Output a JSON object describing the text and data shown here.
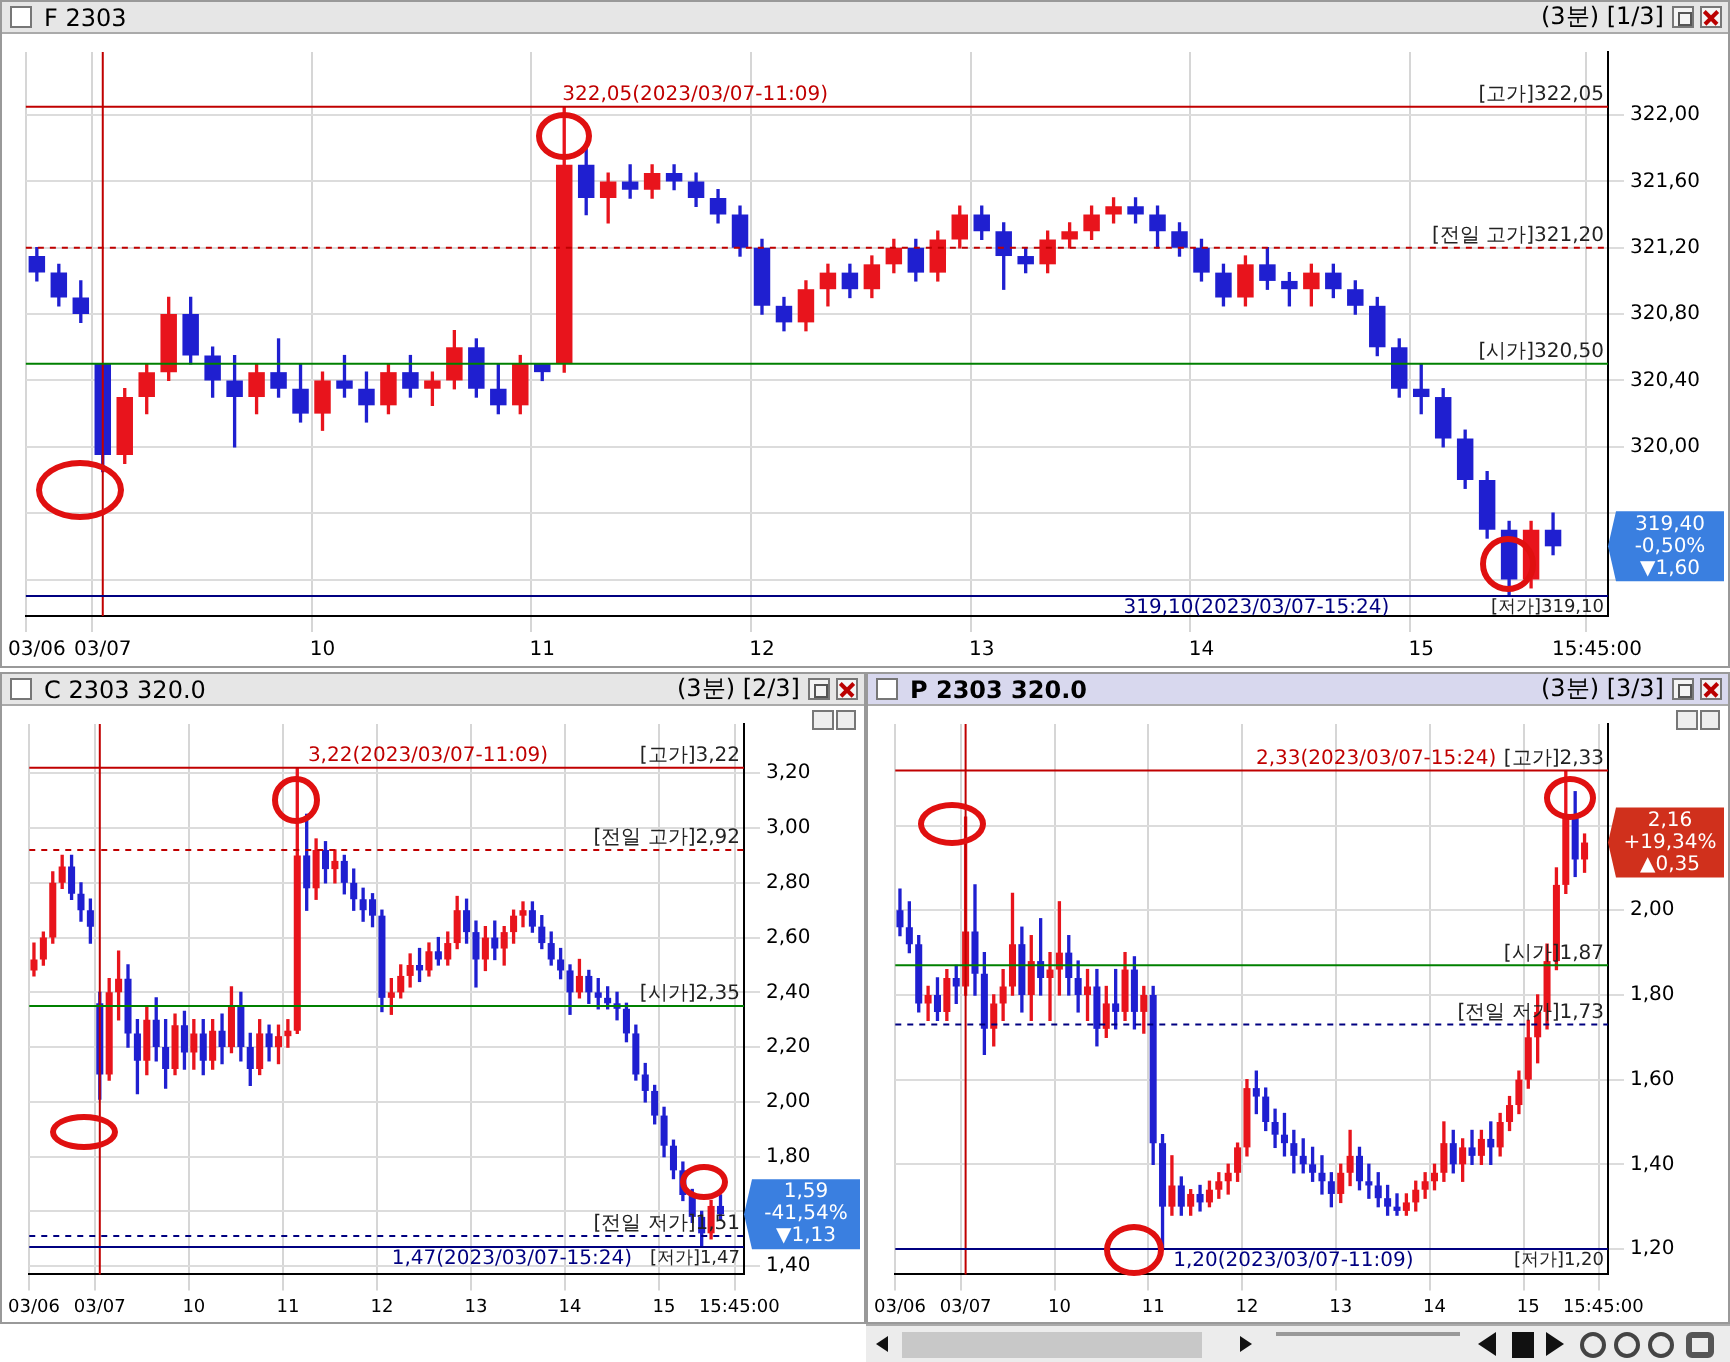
{
  "chart_data": [
    {
      "type": "candlestick",
      "title": "F 2303",
      "subtitle": "(3분) [1/3]",
      "categories": [
        "03/06",
        null,
        null,
        "03/07",
        null,
        null,
        null,
        null,
        null,
        null,
        null,
        null,
        null,
        "10",
        null,
        null,
        null,
        null,
        null,
        null,
        null,
        null,
        null,
        "11",
        null,
        null,
        null,
        null,
        null,
        null,
        null,
        null,
        null,
        "12",
        null,
        null,
        null,
        null,
        null,
        null,
        null,
        null,
        null,
        "13",
        null,
        null,
        null,
        null,
        null,
        null,
        null,
        null,
        null,
        "14",
        null,
        null,
        null,
        null,
        null,
        null,
        null,
        null,
        null,
        "15",
        null,
        null,
        null,
        null,
        null,
        null,
        null,
        "15:45:00"
      ],
      "ohlc": [
        [
          321.15,
          321.2,
          321.0,
          321.05
        ],
        [
          321.05,
          321.1,
          320.85,
          320.9
        ],
        [
          320.9,
          321.0,
          320.75,
          320.8
        ],
        [
          320.5,
          320.5,
          319.85,
          319.95
        ],
        [
          319.95,
          320.35,
          319.9,
          320.3
        ],
        [
          320.3,
          320.5,
          320.2,
          320.45
        ],
        [
          320.45,
          320.9,
          320.4,
          320.8
        ],
        [
          320.8,
          320.9,
          320.5,
          320.55
        ],
        [
          320.55,
          320.6,
          320.3,
          320.4
        ],
        [
          320.4,
          320.55,
          320.0,
          320.3
        ],
        [
          320.3,
          320.5,
          320.2,
          320.45
        ],
        [
          320.45,
          320.65,
          320.3,
          320.35
        ],
        [
          320.35,
          320.5,
          320.15,
          320.2
        ],
        [
          320.2,
          320.45,
          320.1,
          320.4
        ],
        [
          320.4,
          320.55,
          320.3,
          320.35
        ],
        [
          320.35,
          320.45,
          320.15,
          320.25
        ],
        [
          320.25,
          320.5,
          320.2,
          320.45
        ],
        [
          320.45,
          320.55,
          320.3,
          320.35
        ],
        [
          320.35,
          320.45,
          320.25,
          320.4
        ],
        [
          320.4,
          320.7,
          320.35,
          320.6
        ],
        [
          320.6,
          320.65,
          320.3,
          320.35
        ],
        [
          320.35,
          320.5,
          320.2,
          320.25
        ],
        [
          320.25,
          320.55,
          320.2,
          320.5
        ],
        [
          320.5,
          320.5,
          320.4,
          320.45
        ],
        [
          320.5,
          322.05,
          320.45,
          321.7
        ],
        [
          321.7,
          321.8,
          321.4,
          321.5
        ],
        [
          321.5,
          321.65,
          321.35,
          321.6
        ],
        [
          321.6,
          321.7,
          321.5,
          321.55
        ],
        [
          321.55,
          321.7,
          321.5,
          321.65
        ],
        [
          321.65,
          321.7,
          321.55,
          321.6
        ],
        [
          321.6,
          321.65,
          321.45,
          321.5
        ],
        [
          321.5,
          321.55,
          321.35,
          321.4
        ],
        [
          321.4,
          321.45,
          321.15,
          321.2
        ],
        [
          321.2,
          321.25,
          320.8,
          320.85
        ],
        [
          320.85,
          320.9,
          320.7,
          320.75
        ],
        [
          320.75,
          321.0,
          320.7,
          320.95
        ],
        [
          320.95,
          321.1,
          320.85,
          321.05
        ],
        [
          321.05,
          321.1,
          320.9,
          320.95
        ],
        [
          320.95,
          321.15,
          320.9,
          321.1
        ],
        [
          321.1,
          321.25,
          321.05,
          321.2
        ],
        [
          321.2,
          321.25,
          321.0,
          321.05
        ],
        [
          321.05,
          321.3,
          321.0,
          321.25
        ],
        [
          321.25,
          321.45,
          321.2,
          321.4
        ],
        [
          321.4,
          321.45,
          321.25,
          321.3
        ],
        [
          321.3,
          321.35,
          320.95,
          321.15
        ],
        [
          321.15,
          321.2,
          321.05,
          321.1
        ],
        [
          321.1,
          321.3,
          321.05,
          321.25
        ],
        [
          321.25,
          321.35,
          321.2,
          321.3
        ],
        [
          321.3,
          321.45,
          321.25,
          321.4
        ],
        [
          321.4,
          321.5,
          321.35,
          321.45
        ],
        [
          321.45,
          321.5,
          321.35,
          321.4
        ],
        [
          321.4,
          321.45,
          321.2,
          321.3
        ],
        [
          321.3,
          321.35,
          321.15,
          321.2
        ],
        [
          321.2,
          321.25,
          321.0,
          321.05
        ],
        [
          321.05,
          321.1,
          320.85,
          320.9
        ],
        [
          320.9,
          321.15,
          320.85,
          321.1
        ],
        [
          321.1,
          321.2,
          320.95,
          321.0
        ],
        [
          321.0,
          321.05,
          320.85,
          320.95
        ],
        [
          320.95,
          321.1,
          320.85,
          321.05
        ],
        [
          321.05,
          321.1,
          320.9,
          320.95
        ],
        [
          320.95,
          321.0,
          320.8,
          320.85
        ],
        [
          320.85,
          320.9,
          320.55,
          320.6
        ],
        [
          320.6,
          320.65,
          320.3,
          320.35
        ],
        [
          320.35,
          320.5,
          320.2,
          320.3
        ],
        [
          320.3,
          320.35,
          320.0,
          320.05
        ],
        [
          320.05,
          320.1,
          319.75,
          319.8
        ],
        [
          319.8,
          319.85,
          319.45,
          319.5
        ],
        [
          319.5,
          319.55,
          319.1,
          319.2
        ],
        [
          319.2,
          319.55,
          319.15,
          319.5
        ],
        [
          319.5,
          319.6,
          319.35,
          319.4
        ],
        null,
        null
      ],
      "ylim": [
        318.98,
        322.38
      ],
      "yticks": [
        {
          "value": 319.2,
          "label": null
        },
        {
          "value": 319.6,
          "label": null
        },
        {
          "value": 320.0,
          "label": "320,00"
        },
        {
          "value": 320.4,
          "label": "320,40"
        },
        {
          "value": 320.8,
          "label": "320,80"
        },
        {
          "value": 321.2,
          "label": "321,20"
        },
        {
          "value": 321.6,
          "label": "321,60"
        },
        {
          "value": 322.0,
          "label": "322,00"
        }
      ],
      "grid": true,
      "ref_lines": [
        {
          "axis": "x",
          "value": "03/07",
          "color": "#c00000"
        },
        {
          "axis": "y",
          "value": 322.05,
          "label": "[고가]322,05",
          "color": "#c00000",
          "line_style": "solid"
        },
        {
          "axis": "y",
          "value": 321.2,
          "label": "[전일 고가]321,20",
          "color": "#c00000",
          "line_style": "dashed"
        },
        {
          "axis": "y",
          "value": 320.5,
          "label": "[시가]320,50",
          "color": "#008000",
          "line_style": "solid"
        },
        {
          "axis": "y",
          "value": 319.1,
          "label": "[저가]319,10",
          "color": "#000080",
          "line_style": "solid"
        }
      ],
      "annotations": [
        {
          "text": "322,05(2023/03/07-11:09)",
          "x": "11",
          "y": 322.05
        },
        {
          "text": "319,10(2023/03/07-15:24)",
          "x": "15",
          "y": 319.1
        },
        "319,40 -0,50% ▼1,60"
      ]
    },
    {
      "type": "candlestick",
      "title": "C 2303 320.0",
      "subtitle": "(3분) [2/3]",
      "categories": [
        "03/06",
        null,
        null,
        null,
        null,
        null,
        null,
        "03/07",
        null,
        null,
        null,
        null,
        null,
        null,
        null,
        null,
        null,
        "10",
        null,
        null,
        null,
        null,
        null,
        null,
        null,
        null,
        null,
        "11",
        null,
        null,
        null,
        null,
        null,
        null,
        null,
        null,
        null,
        "12",
        null,
        null,
        null,
        null,
        null,
        null,
        null,
        null,
        null,
        "13",
        null,
        null,
        null,
        null,
        null,
        null,
        null,
        null,
        null,
        "14",
        null,
        null,
        null,
        null,
        null,
        null,
        null,
        null,
        null,
        "15",
        null,
        null,
        null,
        null,
        null,
        null,
        null,
        "15:45:00"
      ],
      "ohlc": [
        [
          2.48,
          2.58,
          2.46,
          2.52
        ],
        [
          2.52,
          2.62,
          2.5,
          2.6
        ],
        [
          2.6,
          2.84,
          2.58,
          2.8
        ],
        [
          2.8,
          2.9,
          2.78,
          2.86
        ],
        [
          2.86,
          2.9,
          2.74,
          2.76
        ],
        [
          2.76,
          2.8,
          2.66,
          2.7
        ],
        [
          2.7,
          2.74,
          2.58,
          2.64
        ],
        [
          2.36,
          2.4,
          2.01,
          2.1
        ],
        [
          2.1,
          2.45,
          2.08,
          2.4
        ],
        [
          2.4,
          2.55,
          2.3,
          2.45
        ],
        [
          2.45,
          2.5,
          2.2,
          2.25
        ],
        [
          2.25,
          2.3,
          2.03,
          2.15
        ],
        [
          2.15,
          2.35,
          2.1,
          2.3
        ],
        [
          2.3,
          2.38,
          2.15,
          2.2
        ],
        [
          2.2,
          2.3,
          2.05,
          2.12
        ],
        [
          2.12,
          2.32,
          2.1,
          2.28
        ],
        [
          2.28,
          2.33,
          2.12,
          2.18
        ],
        [
          2.18,
          2.3,
          2.12,
          2.25
        ],
        [
          2.25,
          2.3,
          2.1,
          2.15
        ],
        [
          2.15,
          2.3,
          2.12,
          2.26
        ],
        [
          2.26,
          2.32,
          2.14,
          2.2
        ],
        [
          2.2,
          2.42,
          2.18,
          2.35
        ],
        [
          2.35,
          2.4,
          2.15,
          2.2
        ],
        [
          2.2,
          2.25,
          2.06,
          2.12
        ],
        [
          2.12,
          2.3,
          2.1,
          2.25
        ],
        [
          2.25,
          2.28,
          2.15,
          2.2
        ],
        [
          2.2,
          2.28,
          2.14,
          2.24
        ],
        [
          2.24,
          2.3,
          2.2,
          2.26
        ],
        [
          2.26,
          3.22,
          2.25,
          2.9
        ],
        [
          2.9,
          3.05,
          2.7,
          2.78
        ],
        [
          2.78,
          2.96,
          2.74,
          2.92
        ],
        [
          2.92,
          2.95,
          2.8,
          2.85
        ],
        [
          2.85,
          2.92,
          2.8,
          2.88
        ],
        [
          2.88,
          2.9,
          2.76,
          2.8
        ],
        [
          2.8,
          2.85,
          2.7,
          2.74
        ],
        [
          2.74,
          2.78,
          2.66,
          2.7
        ],
        [
          2.74,
          2.76,
          2.64,
          2.68
        ],
        [
          2.68,
          2.7,
          2.33,
          2.38
        ],
        [
          2.38,
          2.45,
          2.32,
          2.4
        ],
        [
          2.4,
          2.5,
          2.38,
          2.46
        ],
        [
          2.46,
          2.54,
          2.42,
          2.5
        ],
        [
          2.5,
          2.56,
          2.44,
          2.48
        ],
        [
          2.48,
          2.58,
          2.46,
          2.55
        ],
        [
          2.55,
          2.6,
          2.5,
          2.52
        ],
        [
          2.52,
          2.62,
          2.5,
          2.58
        ],
        [
          2.58,
          2.75,
          2.56,
          2.7
        ],
        [
          2.7,
          2.74,
          2.58,
          2.62
        ],
        [
          2.62,
          2.66,
          2.42,
          2.52
        ],
        [
          2.52,
          2.64,
          2.48,
          2.6
        ],
        [
          2.6,
          2.66,
          2.52,
          2.56
        ],
        [
          2.56,
          2.64,
          2.5,
          2.62
        ],
        [
          2.62,
          2.7,
          2.58,
          2.68
        ],
        [
          2.68,
          2.73,
          2.64,
          2.7
        ],
        [
          2.7,
          2.73,
          2.62,
          2.64
        ],
        [
          2.64,
          2.68,
          2.56,
          2.58
        ],
        [
          2.58,
          2.62,
          2.5,
          2.52
        ],
        [
          2.52,
          2.56,
          2.45,
          2.48
        ],
        [
          2.48,
          2.5,
          2.32,
          2.4
        ],
        [
          2.4,
          2.52,
          2.38,
          2.46
        ],
        [
          2.46,
          2.48,
          2.36,
          2.4
        ],
        [
          2.4,
          2.45,
          2.34,
          2.38
        ],
        [
          2.38,
          2.42,
          2.34,
          2.36
        ],
        [
          2.36,
          2.4,
          2.3,
          2.34
        ],
        [
          2.34,
          2.36,
          2.22,
          2.25
        ],
        [
          2.25,
          2.28,
          2.08,
          2.1
        ],
        [
          2.1,
          2.14,
          2.0,
          2.04
        ],
        [
          2.04,
          2.06,
          1.92,
          1.95
        ],
        [
          1.95,
          1.98,
          1.8,
          1.84
        ],
        [
          1.84,
          1.86,
          1.72,
          1.75
        ],
        [
          1.75,
          1.78,
          1.64,
          1.66
        ],
        [
          1.66,
          1.68,
          1.56,
          1.58
        ],
        [
          1.58,
          1.6,
          1.47,
          1.52
        ],
        [
          1.52,
          1.64,
          1.5,
          1.62
        ],
        [
          1.62,
          1.66,
          1.57,
          1.59
        ],
        null,
        null
      ],
      "ylim": [
        1.37,
        3.38
      ],
      "yticks": [
        {
          "value": 1.4,
          "label": "1,40"
        },
        {
          "value": 1.6,
          "label": null
        },
        {
          "value": 1.8,
          "label": "1,80"
        },
        {
          "value": 2.0,
          "label": "2,00"
        },
        {
          "value": 2.2,
          "label": "2,20"
        },
        {
          "value": 2.4,
          "label": "2,40"
        },
        {
          "value": 2.6,
          "label": "2,60"
        },
        {
          "value": 2.8,
          "label": "2,80"
        },
        {
          "value": 3.0,
          "label": "3,00"
        },
        {
          "value": 3.2,
          "label": "3,20"
        }
      ],
      "grid": true,
      "ref_lines": [
        {
          "axis": "x",
          "value": "03/07",
          "color": "#c00000"
        },
        {
          "axis": "y",
          "value": 3.22,
          "label": "[고가]3,22",
          "color": "#c00000",
          "line_style": "solid"
        },
        {
          "axis": "y",
          "value": 2.92,
          "label": "[전일 고가]2,92",
          "color": "#c00000",
          "line_style": "dashed"
        },
        {
          "axis": "y",
          "value": 2.35,
          "label": "[시가]2,35",
          "color": "#008000",
          "line_style": "solid"
        },
        {
          "axis": "y",
          "value": 1.51,
          "label": "[전일 저가]1,51",
          "color": "#000080",
          "line_style": "dashed"
        },
        {
          "axis": "y",
          "value": 1.47,
          "label": "[저가]1,47",
          "color": "#000080",
          "line_style": "solid"
        }
      ],
      "annotations": [
        {
          "text": "3,22(2023/03/07-11:09)",
          "x": "11",
          "y": 3.22
        },
        {
          "text": "1,47(2023/03/07-15:24)",
          "x": "15",
          "y": 1.47
        },
        "1,59 -41,54% ▼1,13"
      ]
    },
    {
      "type": "candlestick",
      "title": "P 2303 320.0",
      "subtitle": "(3분) [3/3]",
      "categories": [
        "03/06",
        null,
        null,
        null,
        null,
        null,
        null,
        "03/07",
        null,
        null,
        null,
        null,
        null,
        null,
        null,
        null,
        null,
        "10",
        null,
        null,
        null,
        null,
        null,
        null,
        null,
        null,
        null,
        "11",
        null,
        null,
        null,
        null,
        null,
        null,
        null,
        null,
        null,
        "12",
        null,
        null,
        null,
        null,
        null,
        null,
        null,
        null,
        null,
        "13",
        null,
        null,
        null,
        null,
        null,
        null,
        null,
        null,
        null,
        "14",
        null,
        null,
        null,
        null,
        null,
        null,
        null,
        null,
        null,
        "15",
        null,
        null,
        null,
        null,
        null,
        null,
        null,
        "15:45:00"
      ],
      "ohlc": [
        [
          2.0,
          2.05,
          1.94,
          1.96
        ],
        [
          1.96,
          2.02,
          1.9,
          1.92
        ],
        [
          1.92,
          1.94,
          1.76,
          1.78
        ],
        [
          1.78,
          1.82,
          1.74,
          1.8
        ],
        [
          1.8,
          1.84,
          1.74,
          1.76
        ],
        [
          1.76,
          1.86,
          1.74,
          1.84
        ],
        [
          1.84,
          1.87,
          1.78,
          1.82
        ],
        [
          1.82,
          2.22,
          1.8,
          1.95
        ],
        [
          1.95,
          2.06,
          1.8,
          1.85
        ],
        [
          1.85,
          1.9,
          1.66,
          1.72
        ],
        [
          1.72,
          1.8,
          1.68,
          1.78
        ],
        [
          1.78,
          1.86,
          1.74,
          1.82
        ],
        [
          1.82,
          2.04,
          1.8,
          1.92
        ],
        [
          1.92,
          1.96,
          1.76,
          1.8
        ],
        [
          1.8,
          1.94,
          1.74,
          1.88
        ],
        [
          1.88,
          1.98,
          1.8,
          1.84
        ],
        [
          1.84,
          1.9,
          1.74,
          1.86
        ],
        [
          1.86,
          2.02,
          1.8,
          1.9
        ],
        [
          1.9,
          1.94,
          1.8,
          1.84
        ],
        [
          1.84,
          1.88,
          1.76,
          1.8
        ],
        [
          1.8,
          1.86,
          1.74,
          1.82
        ],
        [
          1.82,
          1.86,
          1.68,
          1.72
        ],
        [
          1.72,
          1.82,
          1.7,
          1.78
        ],
        [
          1.78,
          1.86,
          1.72,
          1.76
        ],
        [
          1.76,
          1.9,
          1.74,
          1.86
        ],
        [
          1.86,
          1.89,
          1.72,
          1.76
        ],
        [
          1.76,
          1.82,
          1.71,
          1.8
        ],
        [
          1.8,
          1.82,
          1.4,
          1.45
        ],
        [
          1.45,
          1.47,
          1.2,
          1.3
        ],
        [
          1.3,
          1.42,
          1.28,
          1.35
        ],
        [
          1.35,
          1.37,
          1.28,
          1.3
        ],
        [
          1.3,
          1.34,
          1.28,
          1.33
        ],
        [
          1.33,
          1.35,
          1.29,
          1.31
        ],
        [
          1.31,
          1.36,
          1.3,
          1.34
        ],
        [
          1.34,
          1.38,
          1.32,
          1.36
        ],
        [
          1.36,
          1.4,
          1.33,
          1.38
        ],
        [
          1.38,
          1.45,
          1.36,
          1.44
        ],
        [
          1.44,
          1.6,
          1.42,
          1.58
        ],
        [
          1.58,
          1.62,
          1.52,
          1.56
        ],
        [
          1.56,
          1.58,
          1.48,
          1.5
        ],
        [
          1.5,
          1.53,
          1.44,
          1.47
        ],
        [
          1.47,
          1.52,
          1.42,
          1.45
        ],
        [
          1.45,
          1.48,
          1.38,
          1.42
        ],
        [
          1.42,
          1.46,
          1.38,
          1.4
        ],
        [
          1.4,
          1.44,
          1.36,
          1.38
        ],
        [
          1.38,
          1.42,
          1.33,
          1.36
        ],
        [
          1.36,
          1.38,
          1.3,
          1.33
        ],
        [
          1.33,
          1.4,
          1.31,
          1.38
        ],
        [
          1.38,
          1.48,
          1.35,
          1.42
        ],
        [
          1.42,
          1.44,
          1.34,
          1.36
        ],
        [
          1.36,
          1.4,
          1.32,
          1.35
        ],
        [
          1.35,
          1.38,
          1.3,
          1.32
        ],
        [
          1.32,
          1.35,
          1.28,
          1.3
        ],
        [
          1.3,
          1.33,
          1.28,
          1.29
        ],
        [
          1.29,
          1.33,
          1.28,
          1.31
        ],
        [
          1.31,
          1.36,
          1.29,
          1.34
        ],
        [
          1.34,
          1.38,
          1.32,
          1.36
        ],
        [
          1.36,
          1.4,
          1.34,
          1.38
        ],
        [
          1.38,
          1.5,
          1.36,
          1.45
        ],
        [
          1.45,
          1.48,
          1.38,
          1.4
        ],
        [
          1.4,
          1.46,
          1.36,
          1.44
        ],
        [
          1.44,
          1.48,
          1.4,
          1.42
        ],
        [
          1.42,
          1.48,
          1.4,
          1.46
        ],
        [
          1.46,
          1.5,
          1.4,
          1.44
        ],
        [
          1.44,
          1.52,
          1.42,
          1.5
        ],
        [
          1.5,
          1.56,
          1.48,
          1.54
        ],
        [
          1.54,
          1.62,
          1.52,
          1.6
        ],
        [
          1.6,
          1.74,
          1.58,
          1.7
        ],
        [
          1.7,
          1.8,
          1.64,
          1.76
        ],
        [
          1.76,
          1.92,
          1.72,
          1.88
        ],
        [
          1.88,
          2.1,
          1.86,
          2.06
        ],
        [
          2.06,
          2.33,
          2.04,
          2.22
        ],
        [
          2.22,
          2.28,
          2.08,
          2.12
        ],
        [
          2.12,
          2.18,
          2.09,
          2.16
        ],
        null,
        null
      ],
      "ylim": [
        1.14,
        2.44
      ],
      "yticks": [
        {
          "value": 1.2,
          "label": "1,20"
        },
        {
          "value": 1.4,
          "label": "1,40"
        },
        {
          "value": 1.6,
          "label": "1,60"
        },
        {
          "value": 1.8,
          "label": "1,80"
        },
        {
          "value": 2.0,
          "label": "2,00"
        },
        {
          "value": 2.2,
          "label": null
        }
      ],
      "grid": true,
      "ref_lines": [
        {
          "axis": "x",
          "value": "03/07",
          "color": "#c00000"
        },
        {
          "axis": "y",
          "value": 2.33,
          "label": "[고가]2,33",
          "color": "#c00000",
          "line_style": "solid"
        },
        {
          "axis": "y",
          "value": 1.87,
          "label": "[시가]1,87",
          "color": "#008000",
          "line_style": "solid"
        },
        {
          "axis": "y",
          "value": 1.73,
          "label": "[전일 저가]1,73",
          "color": "#000080",
          "line_style": "dashed"
        },
        {
          "axis": "y",
          "value": 1.2,
          "label": "[저가]1,20",
          "color": "#000080",
          "line_style": "solid"
        }
      ],
      "annotations": [
        {
          "text": "2,33(2023/03/07-15:24)",
          "x": "15",
          "y": 2.33
        },
        {
          "text": "1,20(2023/03/07-11:09)",
          "x": "11",
          "y": 1.2
        },
        "2,16 +19,34% ▲0,35"
      ]
    }
  ]
}
